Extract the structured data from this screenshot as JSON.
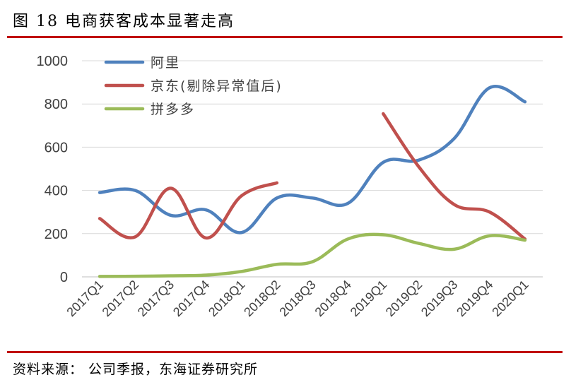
{
  "figure": {
    "title": "图 18  电商获客成本显著走高",
    "source": "资料来源：  公司季报，东海证券研究所"
  },
  "chart_data": {
    "type": "line",
    "title": "",
    "xlabel": "",
    "ylabel": "",
    "ylim": [
      0,
      1000
    ],
    "yticks": [
      0,
      200,
      400,
      600,
      800,
      1000
    ],
    "grid": "horizontal",
    "legend": "top-left",
    "smooth": true,
    "categories": [
      "2017Q1",
      "2017Q2",
      "2017Q3",
      "2017Q4",
      "2018Q1",
      "2018Q2",
      "2018Q3",
      "2018Q4",
      "2019Q1",
      "2019Q2",
      "2019Q3",
      "2019Q4",
      "2020Q1"
    ],
    "series": [
      {
        "name": "阿里",
        "color": "#4F81BD",
        "values": [
          390,
          400,
          285,
          310,
          205,
          365,
          365,
          340,
          530,
          540,
          640,
          875,
          810
        ]
      },
      {
        "name": "京东(剔除异常值后)",
        "color": "#C0504D",
        "values": [
          270,
          185,
          410,
          180,
          375,
          435,
          null,
          null,
          755,
          510,
          335,
          300,
          175
        ]
      },
      {
        "name": "拼多多",
        "color": "#9BBB59",
        "values": [
          2,
          3,
          5,
          8,
          25,
          58,
          70,
          175,
          195,
          155,
          128,
          190,
          170
        ]
      }
    ]
  }
}
